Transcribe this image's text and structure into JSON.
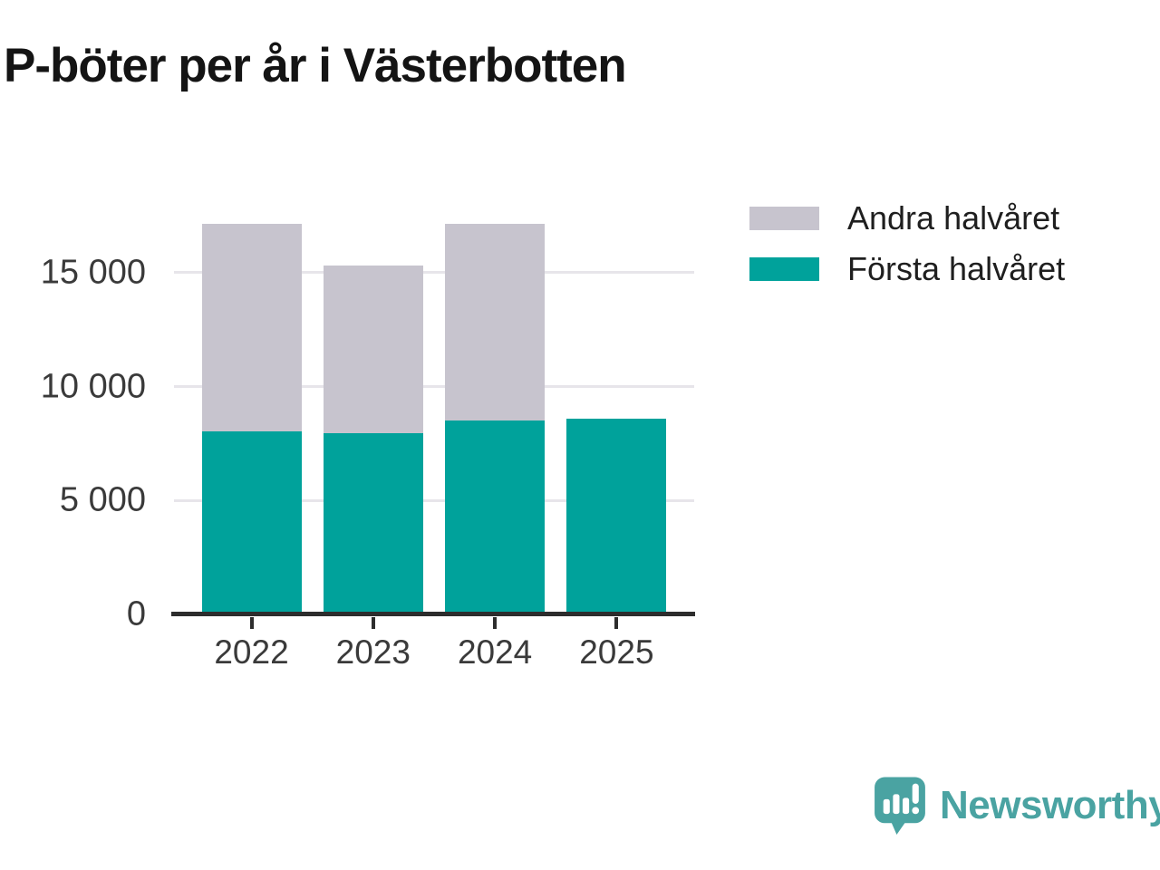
{
  "header": {
    "title": "P-böter per år i Västerbotten"
  },
  "chart_data": {
    "type": "bar",
    "stacked": true,
    "title": "P-böter per år i Västerbotten",
    "categories": [
      "2022",
      "2023",
      "2024",
      "2025"
    ],
    "series": [
      {
        "name": "Första halvåret",
        "color": "#00a29b",
        "values": [
          8050,
          7950,
          8500,
          8600
        ]
      },
      {
        "name": "Andra halvåret",
        "color": "#c7c4ce",
        "values": [
          9100,
          7350,
          8650,
          0
        ]
      }
    ],
    "totals": [
      17150,
      15300,
      17150,
      8600
    ],
    "y_ticks": [
      {
        "value": 0,
        "label": "0"
      },
      {
        "value": 5000,
        "label": "5 000"
      },
      {
        "value": 10000,
        "label": "10 000"
      },
      {
        "value": 15000,
        "label": "15 000"
      }
    ],
    "ylim": [
      0,
      17500
    ],
    "xlabel": "",
    "ylabel": "",
    "grid": "horizontal",
    "legend": {
      "position": "top-right",
      "items": [
        {
          "label": "Andra halvåret",
          "color": "#c7c4ce"
        },
        {
          "label": "Första halvåret",
          "color": "#00a29b"
        }
      ]
    }
  },
  "footer": {
    "brand": "Newsworthy"
  },
  "colors": {
    "first_half": "#00a29b",
    "second_half": "#c7c4ce",
    "gridline": "#e7e5ea",
    "axis": "#2d2d2d",
    "tick_text": "#3a3a3a",
    "title_text": "#141414",
    "logo_teal": "#4aa3a2"
  }
}
